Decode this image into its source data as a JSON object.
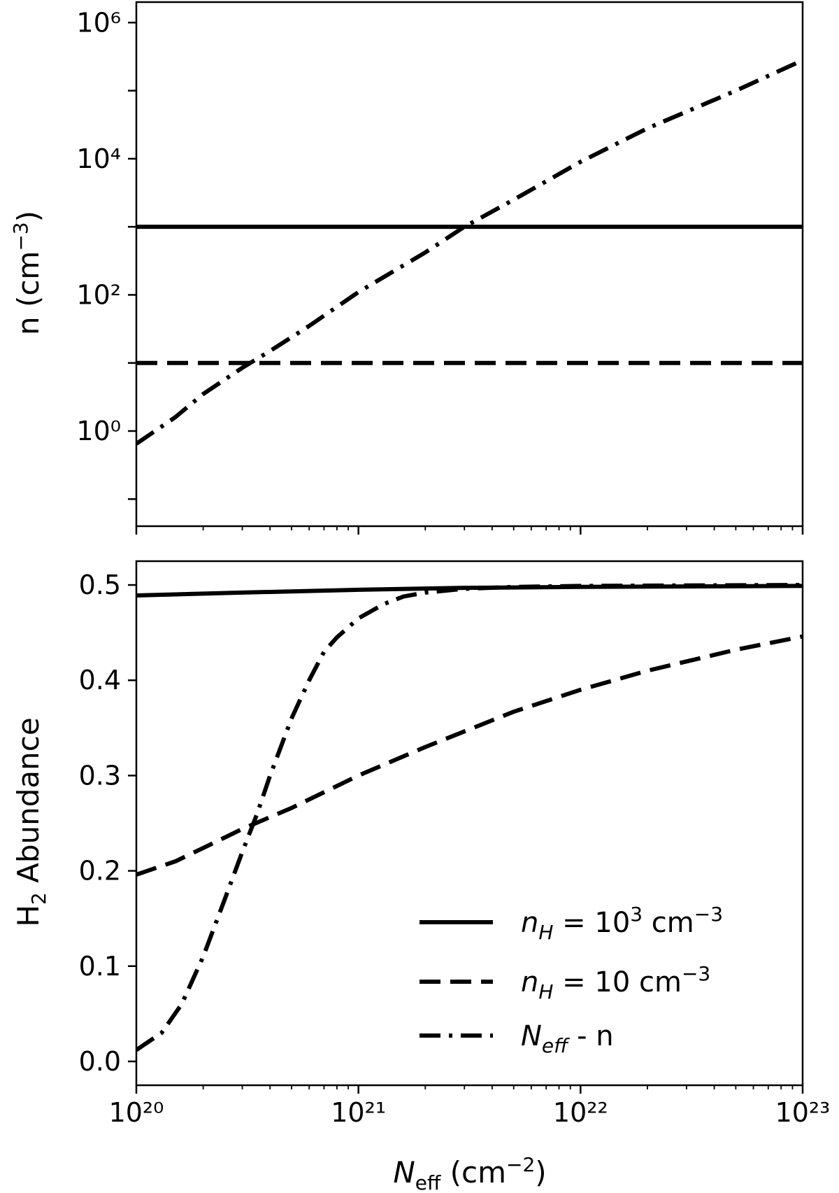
{
  "chart_data": [
    {
      "type": "line",
      "panel": "top",
      "ylabel": "n (cm⁻³)",
      "yscale": "log",
      "xscale": "log",
      "xlim": [
        1e+20,
        1e+23
      ],
      "ylim": [
        0.04,
        2000000.0
      ],
      "x_ticks": [
        "10²⁰",
        "10²¹",
        "10²²",
        "10²³"
      ],
      "y_ticks": [
        {
          "value": 1,
          "label": "10⁰"
        },
        {
          "value": 100,
          "label": "10²"
        },
        {
          "value": 10000,
          "label": "10⁴"
        },
        {
          "value": 1000000,
          "label": "10⁶"
        }
      ],
      "series": [
        {
          "name": "n_H = 10³ cm⁻³",
          "style": "solid",
          "x": [
            1e+20,
            1e+23
          ],
          "y": [
            1000,
            1000
          ]
        },
        {
          "name": "n_H = 10 cm⁻³",
          "style": "dashed",
          "x": [
            1e+20,
            1e+23
          ],
          "y": [
            10,
            10
          ]
        },
        {
          "name": "N_eff - n",
          "style": "dashdot",
          "x": [
            1e+20,
            1.5e+20,
            2e+20,
            3e+20,
            4e+20,
            6e+20,
            1e+21,
            2e+21,
            3e+21,
            5e+21,
            1e+22,
            2e+22,
            5e+22,
            1e+23
          ],
          "y": [
            0.65,
            1.6,
            3.5,
            8.5,
            15,
            35,
            110,
            420,
            1000,
            2500,
            9000,
            28000,
            100000,
            280000
          ]
        }
      ]
    },
    {
      "type": "line",
      "panel": "bottom",
      "xlabel": "N_eff (cm⁻²)",
      "ylabel": "H₂ Abundance",
      "xscale": "log",
      "xlim": [
        1e+20,
        1e+23
      ],
      "ylim": [
        -0.025,
        0.525
      ],
      "x_ticks": [
        "10²⁰",
        "10²¹",
        "10²²",
        "10²³"
      ],
      "y_ticks": [
        "0.0",
        "0.1",
        "0.2",
        "0.3",
        "0.4",
        "0.5"
      ],
      "legend_position": "lower-right",
      "series": [
        {
          "name": "n_H = 10³ cm⁻³",
          "style": "solid",
          "x": [
            1e+20,
            3e+20,
            1e+21,
            3e+21,
            1e+22,
            1e+23
          ],
          "y": [
            0.489,
            0.492,
            0.495,
            0.497,
            0.498,
            0.499
          ]
        },
        {
          "name": "n_H = 10 cm⁻³",
          "style": "dashed",
          "x": [
            1e+20,
            1.5e+20,
            2e+20,
            3e+20,
            5e+20,
            1e+21,
            2e+21,
            5e+21,
            1e+22,
            2e+22,
            5e+22,
            1e+23
          ],
          "y": [
            0.196,
            0.21,
            0.224,
            0.244,
            0.266,
            0.3,
            0.33,
            0.367,
            0.39,
            0.41,
            0.432,
            0.446
          ]
        },
        {
          "name": "N_eff - n",
          "style": "dashdot",
          "x": [
            1e+20,
            1.3e+20,
            1.6e+20,
            2e+20,
            2.5e+20,
            3e+20,
            3.5e+20,
            4e+20,
            5e+20,
            6e+20,
            7e+20,
            8e+20,
            1e+21,
            1.3e+21,
            1.6e+21,
            2e+21,
            3e+21,
            5e+21,
            1e+22,
            1e+23
          ],
          "y": [
            0.012,
            0.03,
            0.06,
            0.11,
            0.17,
            0.22,
            0.26,
            0.3,
            0.36,
            0.4,
            0.43,
            0.445,
            0.465,
            0.48,
            0.488,
            0.492,
            0.496,
            0.498,
            0.499,
            0.5
          ]
        }
      ]
    }
  ],
  "legend": {
    "entries": [
      {
        "style": "solid",
        "prefix": "n",
        "sub": "H",
        "mid": " = 10",
        "sup": "3",
        "suffix": " cm",
        "sup2": "−3"
      },
      {
        "style": "dashed",
        "prefix": "n",
        "sub": "H",
        "mid": " = 10",
        "sup": "",
        "suffix": " cm",
        "sup2": "−3"
      },
      {
        "style": "dashdot",
        "prefix": "N",
        "sub": "eff",
        "mid": " - n",
        "sup": "",
        "suffix": "",
        "sup2": ""
      }
    ]
  }
}
